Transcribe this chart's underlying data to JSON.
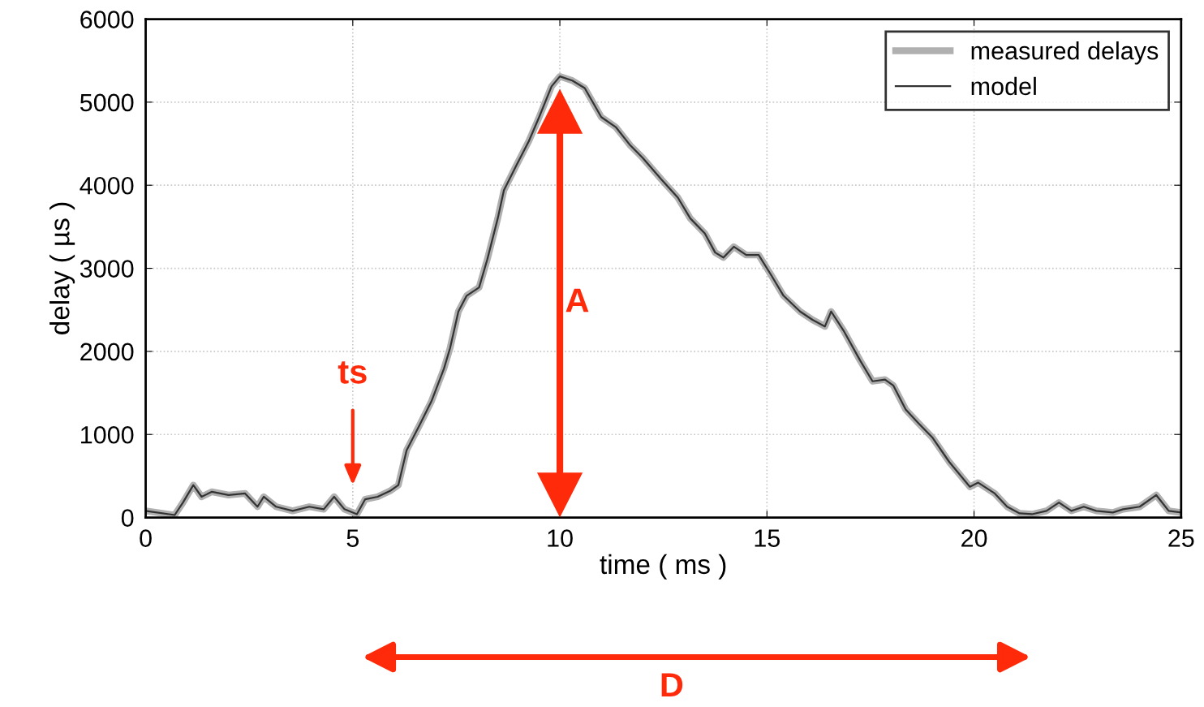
{
  "chart_data": {
    "type": "line",
    "xlabel": "time ( ms )",
    "ylabel": "delay ( µs )",
    "xlim": [
      0,
      25
    ],
    "ylim": [
      0,
      6000
    ],
    "xticks": [
      0,
      5,
      10,
      15,
      20,
      25
    ],
    "yticks": [
      0,
      1000,
      2000,
      3000,
      4000,
      5000,
      6000
    ],
    "grid": true,
    "legend": "top right",
    "marker": "none",
    "line_style": "solid",
    "x": [
      0,
      0.7,
      0.9,
      1.15,
      1.35,
      1.6,
      2,
      2.4,
      2.7,
      2.85,
      3.15,
      3.55,
      3.95,
      4.3,
      4.55,
      4.8,
      5.1,
      5.3,
      5.6,
      5.9,
      6.1,
      6.3,
      6.6,
      6.9,
      7.2,
      7.35,
      7.55,
      7.75,
      8.05,
      8.25,
      8.5,
      8.65,
      8.95,
      9.25,
      9.5,
      9.8,
      10.0,
      10.3,
      10.6,
      11.0,
      11.35,
      11.7,
      12.0,
      12.45,
      12.85,
      13.15,
      13.5,
      13.75,
      13.95,
      14.2,
      14.5,
      14.8,
      15.1,
      15.4,
      15.8,
      16.1,
      16.4,
      16.55,
      16.85,
      17.25,
      17.55,
      17.85,
      18.05,
      18.35,
      18.65,
      19.0,
      19.4,
      19.9,
      20.1,
      20.5,
      20.8,
      21.1,
      21.4,
      21.75,
      22.05,
      22.35,
      22.65,
      22.95,
      23.35,
      23.6,
      24.0,
      24.4,
      24.7,
      25
    ],
    "series": [
      {
        "name": "measured delays",
        "color": "#b0b0b0",
        "values": [
          80,
          30,
          180,
          390,
          250,
          310,
          270,
          290,
          130,
          250,
          130,
          80,
          130,
          100,
          250,
          100,
          40,
          220,
          250,
          320,
          390,
          810,
          1100,
          1400,
          1790,
          2040,
          2480,
          2670,
          2770,
          3110,
          3600,
          3940,
          4240,
          4530,
          4820,
          5190,
          5310,
          5260,
          5170,
          4820,
          4700,
          4480,
          4330,
          4070,
          3850,
          3600,
          3420,
          3190,
          3130,
          3260,
          3160,
          3160,
          2920,
          2670,
          2480,
          2380,
          2300,
          2480,
          2250,
          1890,
          1640,
          1660,
          1590,
          1300,
          1140,
          960,
          670,
          370,
          420,
          290,
          130,
          50,
          40,
          80,
          180,
          80,
          130,
          80,
          60,
          100,
          130,
          270,
          80,
          60
        ]
      },
      {
        "name": "model",
        "color": "#333333",
        "values": [
          80,
          30,
          180,
          390,
          250,
          310,
          270,
          290,
          130,
          250,
          130,
          80,
          130,
          100,
          250,
          100,
          40,
          220,
          250,
          320,
          390,
          810,
          1100,
          1400,
          1790,
          2040,
          2480,
          2670,
          2770,
          3110,
          3600,
          3940,
          4240,
          4530,
          4820,
          5190,
          5310,
          5260,
          5170,
          4820,
          4700,
          4480,
          4330,
          4070,
          3850,
          3600,
          3420,
          3190,
          3130,
          3260,
          3160,
          3160,
          2920,
          2670,
          2480,
          2380,
          2300,
          2480,
          2250,
          1890,
          1640,
          1660,
          1590,
          1300,
          1140,
          960,
          670,
          370,
          420,
          290,
          130,
          50,
          40,
          80,
          180,
          80,
          130,
          80,
          60,
          100,
          130,
          270,
          80,
          60
        ]
      }
    ],
    "annotations": [
      "ts",
      "A",
      "D"
    ]
  }
}
